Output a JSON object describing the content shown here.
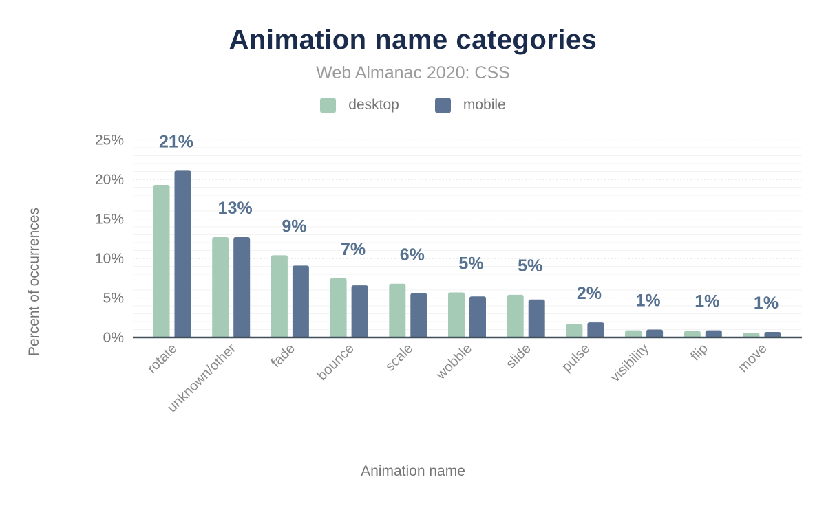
{
  "header": {
    "title": "Animation name categories",
    "subtitle": "Web Almanac 2020: CSS"
  },
  "legend": {
    "position": "top",
    "items": [
      {
        "label": "desktop",
        "color": "#a5cab5"
      },
      {
        "label": "mobile",
        "color": "#5c7394"
      }
    ]
  },
  "axes": {
    "y_label": "Percent of occurrences",
    "x_label": "Animation name"
  },
  "chart_data": {
    "type": "bar",
    "title": "Animation name categories",
    "subtitle": "Web Almanac 2020: CSS",
    "categories": [
      "rotate",
      "unknown/other",
      "fade",
      "bounce",
      "scale",
      "wobble",
      "slide",
      "pulse",
      "visibility",
      "flip",
      "move"
    ],
    "series": [
      {
        "name": "desktop",
        "color": "#a5cab5",
        "values": [
          19.3,
          12.7,
          10.4,
          7.5,
          6.8,
          5.7,
          5.4,
          1.7,
          0.9,
          0.8,
          0.6
        ]
      },
      {
        "name": "mobile",
        "color": "#5c7394",
        "values": [
          21.1,
          12.7,
          9.1,
          6.6,
          5.6,
          5.2,
          4.8,
          1.9,
          1.0,
          0.9,
          0.7
        ]
      }
    ],
    "value_labels": [
      "21%",
      "13%",
      "9%",
      "7%",
      "6%",
      "5%",
      "5%",
      "2%",
      "1%",
      "1%",
      "1%"
    ],
    "xlabel": "Animation name",
    "ylabel": "Percent of occurrences",
    "ylim": [
      0,
      25
    ],
    "yticks": {
      "values": [
        0,
        5,
        10,
        15,
        20,
        25
      ],
      "labels": [
        "0%",
        "5%",
        "10%",
        "15%",
        "20%",
        "25%"
      ]
    },
    "grid": "minor lines every 1% (solid faint), major lines every 5% (dotted)",
    "legend_position": "top",
    "value_labels_rule": "mobile value rounded to whole percent, shown above each group"
  },
  "colors": {
    "title": "#1b2b4c",
    "subtitle": "#9b9b9b",
    "axis_text": "#757575",
    "category_text": "#8a8a8a",
    "value_label": "#56708f",
    "axis_line": "#42505c",
    "grid_minor": "#f3f3f3",
    "grid_major": "#dddddd",
    "desktop": "#a5cab5",
    "mobile": "#5c7394"
  }
}
